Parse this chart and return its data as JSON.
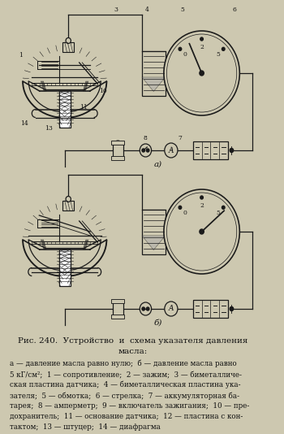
{
  "bg_color": "#cdc8b0",
  "line_color": "#1a1a1a",
  "text_color": "#111111",
  "fig_width": 3.5,
  "fig_height": 5.34,
  "dpi": 100,
  "title_line1": "Рис. 240.  Устройство  и  схема указателя давления",
  "title_line2": "масла:",
  "caption": "а — давление масла равно нулю;  б — давление масла равно\n5 кГ/см²;  1 — сопротивление;  2 — зажим;  3 — биметалличе-\nская пластина датчика;  4 — биметаллическая пластина ука-\nзателя;  5 — обмотка;  6 — стрелка;  7 — аккумуляторная ба-\nтарея;  8 — амперметр;  9 — включатель зажигания;  10 — пре-\nдохранитель;  11 — основание датчика;  12 — пластина с кон-\nтактом;  13 — штуцер;  14 — диафрагма",
  "label_a": "а)",
  "label_b": "б)",
  "lw": 0.9
}
